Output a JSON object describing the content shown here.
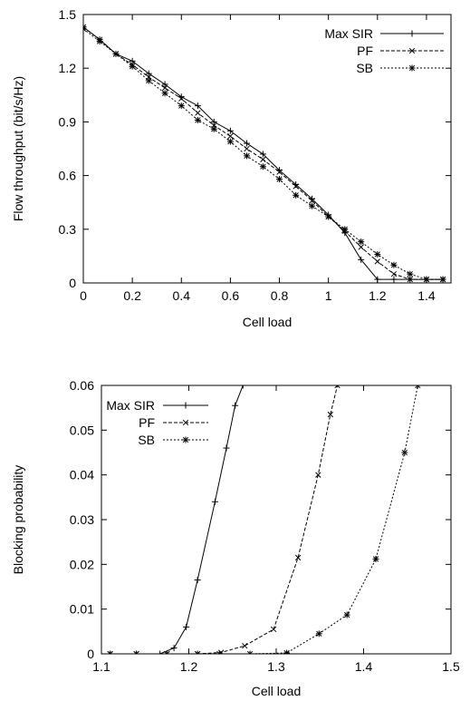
{
  "chart_data": [
    {
      "type": "line",
      "title": "",
      "xlabel": "Cell load",
      "ylabel": "Flow throughput (bit/s/Hz)",
      "xlim": [
        0,
        1.5
      ],
      "ylim": [
        0,
        1.5
      ],
      "xticks": [
        0,
        0.2,
        0.4,
        0.6,
        0.8,
        1,
        1.2,
        1.4
      ],
      "xtick_labels": [
        "0",
        "0.2",
        "0.4",
        "0.6",
        "0.8",
        "1",
        "1.2",
        "1.4"
      ],
      "yticks": [
        0,
        0.3,
        0.6,
        0.9,
        1.2,
        1.5
      ],
      "ytick_labels": [
        "0",
        "0.3",
        "0.6",
        "0.9",
        "1.2",
        "1.5"
      ],
      "grid": false,
      "legend_position": "top-right",
      "series": [
        {
          "name": "Max SIR",
          "dash": "",
          "marker": "plus",
          "x": [
            0,
            0.067,
            0.133,
            0.2,
            0.267,
            0.333,
            0.4,
            0.467,
            0.533,
            0.6,
            0.667,
            0.733,
            0.8,
            0.867,
            0.933,
            1.0,
            1.067,
            1.133,
            1.2,
            1.267,
            1.333,
            1.4,
            1.467
          ],
          "y": [
            1.43,
            1.36,
            1.28,
            1.24,
            1.17,
            1.11,
            1.04,
            0.99,
            0.9,
            0.85,
            0.78,
            0.72,
            0.63,
            0.55,
            0.47,
            0.38,
            0.28,
            0.13,
            0.02,
            0.02,
            0.02,
            0.02,
            0.02
          ]
        },
        {
          "name": "PF",
          "dash": "4,2",
          "marker": "cross",
          "x": [
            0,
            0.067,
            0.133,
            0.2,
            0.267,
            0.333,
            0.4,
            0.467,
            0.533,
            0.6,
            0.667,
            0.733,
            0.8,
            0.867,
            0.933,
            1.0,
            1.067,
            1.133,
            1.2,
            1.267,
            1.333,
            1.4,
            1.467
          ],
          "y": [
            1.43,
            1.36,
            1.28,
            1.22,
            1.15,
            1.09,
            1.03,
            0.95,
            0.88,
            0.82,
            0.75,
            0.69,
            0.62,
            0.54,
            0.46,
            0.37,
            0.29,
            0.2,
            0.12,
            0.05,
            0.02,
            0.02,
            0.02
          ]
        },
        {
          "name": "SB",
          "dash": "2,2",
          "marker": "star",
          "x": [
            0,
            0.067,
            0.133,
            0.2,
            0.267,
            0.333,
            0.4,
            0.467,
            0.533,
            0.6,
            0.667,
            0.733,
            0.8,
            0.867,
            0.933,
            1.0,
            1.067,
            1.133,
            1.2,
            1.267,
            1.333,
            1.4,
            1.467
          ],
          "y": [
            1.42,
            1.35,
            1.28,
            1.21,
            1.13,
            1.06,
            0.99,
            0.91,
            0.86,
            0.79,
            0.71,
            0.65,
            0.58,
            0.49,
            0.43,
            0.37,
            0.3,
            0.23,
            0.16,
            0.1,
            0.05,
            0.02,
            0.02
          ]
        }
      ]
    },
    {
      "type": "line",
      "title": "",
      "xlabel": "Cell load",
      "ylabel": "Blocking probability",
      "xlim": [
        1.1,
        1.5
      ],
      "ylim": [
        0,
        0.06
      ],
      "xticks": [
        1.1,
        1.2,
        1.3,
        1.4,
        1.5
      ],
      "xtick_labels": [
        "1.1",
        "1.2",
        "1.3",
        "1.4",
        "1.5"
      ],
      "yticks": [
        0,
        0.01,
        0.02,
        0.03,
        0.04,
        0.05,
        0.06
      ],
      "ytick_labels": [
        "0",
        "0.01",
        "0.02",
        "0.03",
        "0.04",
        "0.05",
        "0.06"
      ],
      "grid": false,
      "legend_position": "top-left",
      "series": [
        {
          "name": "Max SIR",
          "dash": "",
          "marker": "plus",
          "x": [
            1.11,
            1.14,
            1.167,
            1.183,
            1.197,
            1.21,
            1.23,
            1.243,
            1.253,
            1.262
          ],
          "y": [
            0,
            0,
            0,
            0.0013,
            0.006,
            0.0165,
            0.034,
            0.046,
            0.0555,
            0.06
          ]
        },
        {
          "name": "PF",
          "dash": "4,2",
          "marker": "cross",
          "x": [
            1.11,
            1.14,
            1.175,
            1.21,
            1.237,
            1.264,
            1.297,
            1.325,
            1.348,
            1.362,
            1.37
          ],
          "y": [
            0,
            0,
            0,
            0,
            0.0003,
            0.0018,
            0.0055,
            0.0215,
            0.04,
            0.0535,
            0.06
          ]
        },
        {
          "name": "SB",
          "dash": "2,2",
          "marker": "star",
          "x": [
            1.11,
            1.14,
            1.175,
            1.21,
            1.235,
            1.27,
            1.312,
            1.349,
            1.381,
            1.414,
            1.447,
            1.462
          ],
          "y": [
            0,
            0,
            0,
            0,
            0,
            0,
            0.0002,
            0.0045,
            0.0087,
            0.0212,
            0.045,
            0.06
          ]
        }
      ]
    }
  ]
}
